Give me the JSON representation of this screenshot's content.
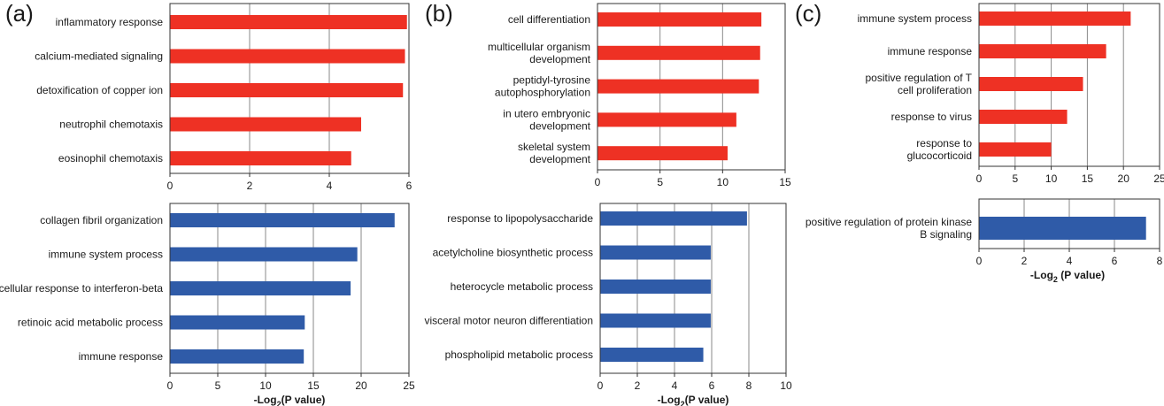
{
  "panels": [
    {
      "label": "(a)"
    },
    {
      "label": "(b)"
    },
    {
      "label": "(c)"
    }
  ],
  "axis_title": {
    "prefix": "-Log",
    "sub": "2",
    "suffix": "(P value)",
    "suffix_c": " (P value)"
  },
  "colors": {
    "red": "#EE3124",
    "blue": "#2F5BA8"
  },
  "chart_data": [
    {
      "type": "bar",
      "orientation": "horizontal",
      "panel": "(a)",
      "color": "#EE3124",
      "categories": [
        "inflammatory response",
        "calcium-mediated signaling",
        "detoxification of copper ion",
        "neutrophil chemotaxis",
        "eosinophil chemotaxis"
      ],
      "values": [
        5.95,
        5.9,
        5.85,
        4.8,
        4.55
      ],
      "xlim": [
        0,
        6
      ],
      "xticks": [
        0,
        2,
        4,
        6
      ],
      "grid": true,
      "xlabel": ""
    },
    {
      "type": "bar",
      "orientation": "horizontal",
      "panel": "(a)",
      "color": "#2F5BA8",
      "categories": [
        "collagen fibril organization",
        "immune system process",
        "cellular response to interferon-beta",
        "retinoic acid metabolic process",
        "immune response"
      ],
      "values": [
        23.5,
        19.6,
        18.9,
        14.1,
        14.0
      ],
      "xlim": [
        0,
        25
      ],
      "xticks": [
        0,
        5,
        10,
        15,
        20,
        25
      ],
      "grid": true,
      "xlabel": "-Log2(P value)"
    },
    {
      "type": "bar",
      "orientation": "horizontal",
      "panel": "(b)",
      "color": "#EE3124",
      "categories": [
        "cell differentiation",
        "multicellular organism development",
        "peptidyl-tyrosine autophosphorylation",
        "in utero embryonic development",
        "skeletal system development"
      ],
      "values": [
        13.1,
        13.0,
        12.9,
        11.1,
        10.4
      ],
      "xlim": [
        0,
        15
      ],
      "xticks": [
        0,
        5,
        10,
        15
      ],
      "grid": true,
      "xlabel": ""
    },
    {
      "type": "bar",
      "orientation": "horizontal",
      "panel": "(b)",
      "color": "#2F5BA8",
      "categories": [
        "response to lipopolysaccharide",
        "acetylcholine biosynthetic process",
        "heterocycle metabolic process",
        "visceral motor neuron differentiation",
        "phospholipid metabolic process"
      ],
      "values": [
        7.9,
        5.95,
        5.95,
        5.95,
        5.55
      ],
      "xlim": [
        0,
        10
      ],
      "xticks": [
        0,
        2,
        4,
        6,
        8,
        10
      ],
      "grid": true,
      "xlabel": "-Log2(P value)"
    },
    {
      "type": "bar",
      "orientation": "horizontal",
      "panel": "(c)",
      "color": "#EE3124",
      "categories": [
        "immune system process",
        "immune response",
        "positive regulation of T cell proliferation",
        "response to virus",
        "response to glucocorticoid"
      ],
      "values": [
        21.0,
        17.6,
        14.4,
        12.2,
        10.0
      ],
      "xlim": [
        0,
        25
      ],
      "xticks": [
        0,
        5,
        10,
        15,
        20,
        25
      ],
      "grid": true,
      "xlabel": ""
    },
    {
      "type": "bar",
      "orientation": "horizontal",
      "panel": "(c)",
      "color": "#2F5BA8",
      "categories": [
        "positive regulation of protein kinase B signaling"
      ],
      "values": [
        7.4
      ],
      "xlim": [
        0,
        8
      ],
      "xticks": [
        0,
        2,
        4,
        6,
        8
      ],
      "grid": true,
      "xlabel": "-Log2 (P value)"
    }
  ]
}
